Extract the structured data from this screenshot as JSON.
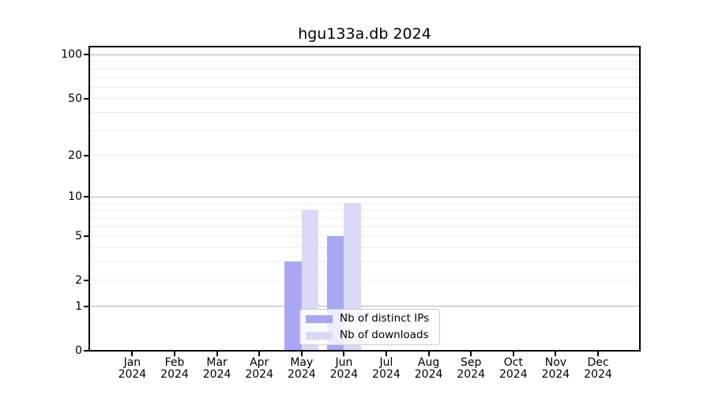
{
  "chart_data": {
    "type": "bar",
    "title": "hgu133a.db 2024",
    "categories": [
      "Jan",
      "Feb",
      "Mar",
      "Apr",
      "May",
      "Jun",
      "Jul",
      "Aug",
      "Sep",
      "Oct",
      "Nov",
      "Dec"
    ],
    "year_label": "2024",
    "series": [
      {
        "name": "Nb of distinct IPs",
        "color": "#a7a7f3",
        "values": [
          0,
          0,
          0,
          0,
          3,
          5,
          0,
          0,
          0,
          0,
          0,
          0
        ]
      },
      {
        "name": "Nb of downloads",
        "color": "#d9d9f7",
        "values": [
          0,
          0,
          0,
          0,
          8,
          9,
          0,
          0,
          0,
          0,
          0,
          0
        ]
      }
    ],
    "xlabel": "",
    "ylabel": "",
    "yscale": "log1p",
    "ylim": [
      0,
      114
    ],
    "yticks": [
      0,
      1,
      2,
      5,
      10,
      20,
      50,
      100
    ],
    "gridlines": {
      "major": [
        1,
        10,
        100
      ],
      "minor": [
        2,
        3,
        4,
        5,
        6,
        7,
        8,
        9,
        20,
        30,
        40,
        50,
        60,
        70,
        80,
        90
      ]
    },
    "grid": true,
    "legend_position": "lower center"
  },
  "colors": {
    "distinct_ips_bar": "#a7a7f3",
    "downloads_bar": "#d9d9f7",
    "major_grid": "#b3b3b3",
    "minor_grid": "#ececec",
    "spine": "#000000",
    "legend_border": "#cccccc"
  }
}
